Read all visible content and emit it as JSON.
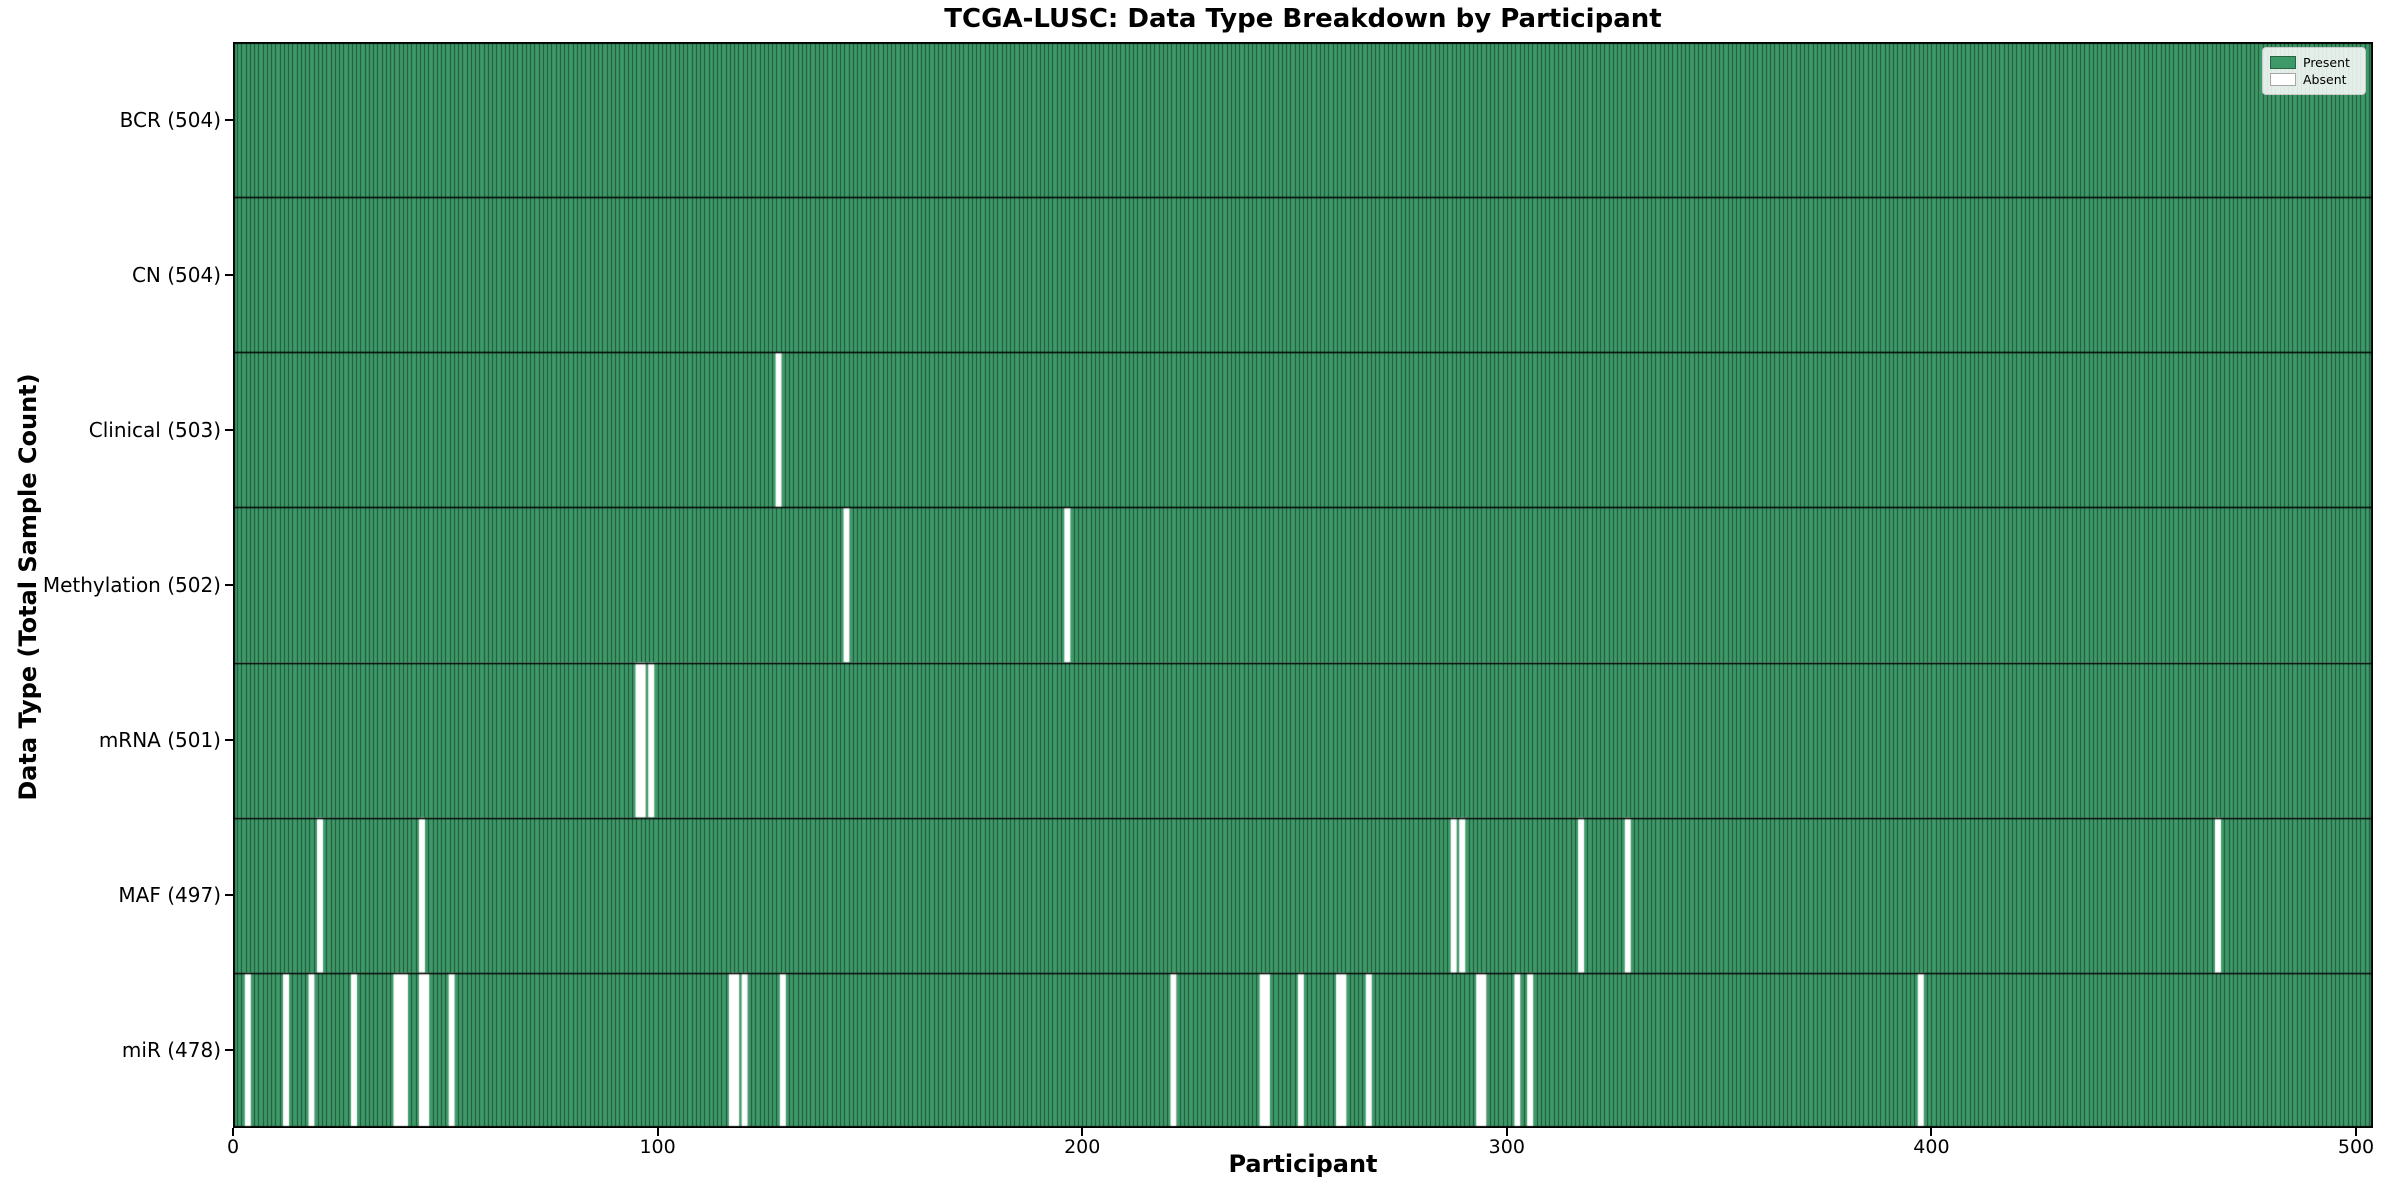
{
  "figure": {
    "title": "TCGA-LUSC: Data Type Breakdown by Participant",
    "xlabel": "Participant",
    "ylabel": "Data Type (Total Sample Count)"
  },
  "legend": {
    "items": [
      {
        "label": "Present",
        "color": "#3d9a68"
      },
      {
        "label": "Absent",
        "color": "#ffffff"
      }
    ]
  },
  "chart_data": {
    "type": "heatmap",
    "title": "TCGA-LUSC: Data Type Breakdown by Participant",
    "xlabel": "Participant",
    "ylabel": "Data Type (Total Sample Count)",
    "legend": [
      "Present",
      "Absent"
    ],
    "legend_position": "upper right",
    "grid": false,
    "x_ticks": [
      0,
      100,
      200,
      300,
      400,
      500
    ],
    "x_range": [
      0,
      504
    ],
    "n_participants": 504,
    "colors": {
      "present": "#3d9a68",
      "absent": "#ffffff",
      "bar_edge": "rgba(0,0,0,0.48)",
      "row_separator": "#000000"
    },
    "rows": [
      {
        "name": "BCR",
        "label": "BCR (504)",
        "total": 504,
        "absent_participants": []
      },
      {
        "name": "CN",
        "label": "CN (504)",
        "total": 504,
        "absent_participants": []
      },
      {
        "name": "Clinical",
        "label": "Clinical (503)",
        "total": 503,
        "absent_participants": [
          128
        ]
      },
      {
        "name": "Methylation",
        "label": "Methylation (502)",
        "total": 502,
        "absent_participants": [
          144,
          196
        ]
      },
      {
        "name": "mRNA",
        "label": "mRNA (501)",
        "total": 501,
        "absent_participants": [
          95,
          96,
          98
        ]
      },
      {
        "name": "MAF",
        "label": "MAF (497)",
        "total": 497,
        "absent_participants": [
          20,
          44,
          287,
          289,
          317,
          328,
          467
        ]
      },
      {
        "name": "miR",
        "label": "miR (478)",
        "total": 478,
        "absent_participants": [
          3,
          12,
          18,
          28,
          38,
          39,
          40,
          44,
          45,
          51,
          117,
          118,
          120,
          129,
          221,
          242,
          243,
          251,
          260,
          261,
          267,
          293,
          294,
          302,
          305,
          397
        ]
      }
    ]
  }
}
